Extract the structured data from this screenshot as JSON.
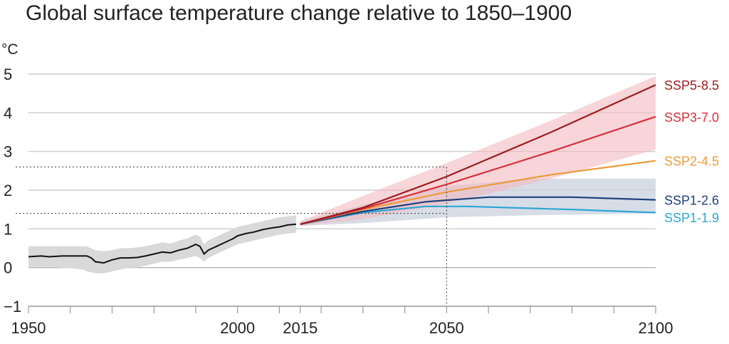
{
  "chart_data": {
    "type": "line",
    "title": "Global surface temperature change relative to 1850–1900",
    "ylabel": "°C",
    "xlim": [
      1950,
      2100
    ],
    "ylim": [
      -1,
      5
    ],
    "y_ticks": [
      "−1",
      "0",
      "1",
      "2",
      "3",
      "4",
      "5"
    ],
    "x_ticks": [
      "1950",
      "2000",
      "2015",
      "2050",
      "2100"
    ],
    "grid": true,
    "historical": {
      "color": "#111111",
      "band_color": "#d9d9d9",
      "x": [
        1950,
        1953,
        1955,
        1958,
        1960,
        1963,
        1964,
        1965,
        1966,
        1968,
        1970,
        1972,
        1974,
        1976,
        1978,
        1980,
        1982,
        1984,
        1986,
        1988,
        1990,
        1991,
        1992,
        1993,
        1995,
        1997,
        1999,
        2000,
        2002,
        2004,
        2006,
        2008,
        2010,
        2012,
        2014
      ],
      "values": [
        0.28,
        0.3,
        0.28,
        0.3,
        0.3,
        0.3,
        0.3,
        0.25,
        0.15,
        0.12,
        0.2,
        0.25,
        0.25,
        0.26,
        0.3,
        0.35,
        0.4,
        0.38,
        0.45,
        0.5,
        0.6,
        0.55,
        0.35,
        0.45,
        0.55,
        0.65,
        0.75,
        0.82,
        0.88,
        0.92,
        0.98,
        1.02,
        1.05,
        1.1,
        1.12
      ],
      "band_low": [
        0.02,
        0.02,
        0.02,
        0.0,
        -0.02,
        -0.05,
        -0.1,
        -0.12,
        -0.15,
        -0.15,
        -0.1,
        -0.05,
        0.0,
        0.0,
        0.05,
        0.1,
        0.15,
        0.15,
        0.2,
        0.25,
        0.3,
        0.25,
        0.15,
        0.25,
        0.35,
        0.45,
        0.55,
        0.6,
        0.65,
        0.7,
        0.75,
        0.8,
        0.85,
        0.88,
        0.9
      ],
      "band_high": [
        0.55,
        0.55,
        0.55,
        0.55,
        0.55,
        0.55,
        0.55,
        0.5,
        0.45,
        0.42,
        0.45,
        0.5,
        0.5,
        0.52,
        0.55,
        0.6,
        0.65,
        0.62,
        0.7,
        0.75,
        0.85,
        0.8,
        0.6,
        0.7,
        0.8,
        0.9,
        1.0,
        1.05,
        1.1,
        1.15,
        1.2,
        1.25,
        1.3,
        1.32,
        1.35
      ]
    },
    "series": [
      {
        "name": "SSP5-8.5",
        "color": "#9b1c1f",
        "x": [
          2015,
          2030,
          2050,
          2075,
          2100
        ],
        "values": [
          1.12,
          1.55,
          2.35,
          3.5,
          4.72
        ]
      },
      {
        "name": "SSP3-7.0",
        "color": "#d7303a",
        "x": [
          2015,
          2030,
          2050,
          2075,
          2100
        ],
        "values": [
          1.12,
          1.52,
          2.15,
          3.0,
          3.9
        ]
      },
      {
        "name": "SSP2-4.5",
        "color": "#ec9a38",
        "x": [
          2015,
          2030,
          2050,
          2075,
          2100
        ],
        "values": [
          1.12,
          1.5,
          1.95,
          2.4,
          2.76
        ]
      },
      {
        "name": "SSP1-2.6",
        "color": "#1f3f7a",
        "x": [
          2015,
          2030,
          2045,
          2060,
          2080,
          2100
        ],
        "values": [
          1.12,
          1.45,
          1.7,
          1.82,
          1.82,
          1.75
        ]
      },
      {
        "name": "SSP1-1.9",
        "color": "#2ba5d4",
        "x": [
          2015,
          2030,
          2045,
          2055,
          2080,
          2100
        ],
        "values": [
          1.12,
          1.42,
          1.58,
          1.58,
          1.5,
          1.42
        ]
      }
    ],
    "bands": [
      {
        "name": "SSP1-2.6",
        "color": "#c9d1df",
        "opacity": 0.75,
        "x": [
          2015,
          2030,
          2050,
          2070,
          2100
        ],
        "low": [
          1.08,
          1.15,
          1.3,
          1.35,
          1.4
        ],
        "high": [
          1.2,
          1.62,
          2.1,
          2.3,
          2.3
        ]
      },
      {
        "name": "SSP3-7.0",
        "color": "#f3b9c0",
        "opacity": 0.6,
        "x": [
          2015,
          2030,
          2050,
          2075,
          2100
        ],
        "low": [
          1.08,
          1.25,
          1.65,
          2.3,
          3.05
        ],
        "high": [
          1.2,
          1.85,
          2.7,
          3.8,
          4.95
        ]
      }
    ],
    "reference_lines": [
      {
        "year": 2050,
        "levels": [
          1.4,
          2.6
        ],
        "style": "dotted"
      }
    ]
  }
}
